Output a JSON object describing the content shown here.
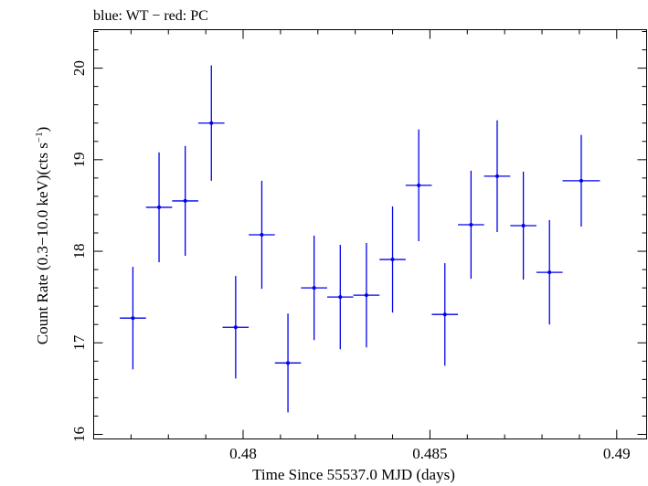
{
  "chart_data": {
    "type": "scatter",
    "title": "blue: WT − red: PC",
    "xlabel": "Time Since 55537.0 MJD (days)",
    "ylabel_main": "Count Rate (0.3−10.0 keV)(cts s",
    "ylabel_sup": "−1",
    "ylabel_close": ")",
    "xlim": [
      0.476,
      0.4908
    ],
    "ylim": [
      15.95,
      20.42
    ],
    "xticks": [
      0.48,
      0.485,
      0.49
    ],
    "xtick_labels": [
      "0.48",
      "0.485",
      "0.49"
    ],
    "yticks": [
      16,
      17,
      18,
      19,
      20
    ],
    "ytick_labels": [
      "16",
      "17",
      "18",
      "19",
      "20"
    ],
    "grid": false,
    "series": [
      {
        "name": "WT",
        "color": "#0000ee",
        "points": [
          {
            "x": 0.47705,
            "xerr": 0.00035,
            "y": 17.27,
            "yerr": 0.56
          },
          {
            "x": 0.47775,
            "xerr": 0.00035,
            "y": 18.48,
            "yerr": 0.6
          },
          {
            "x": 0.47845,
            "xerr": 0.00035,
            "y": 18.55,
            "yerr": 0.6
          },
          {
            "x": 0.47915,
            "xerr": 0.00035,
            "y": 19.4,
            "yerr": 0.63
          },
          {
            "x": 0.4798,
            "xerr": 0.00035,
            "y": 17.17,
            "yerr": 0.56
          },
          {
            "x": 0.4805,
            "xerr": 0.00035,
            "y": 18.18,
            "yerr": 0.59
          },
          {
            "x": 0.4812,
            "xerr": 0.00035,
            "y": 16.78,
            "yerr": 0.54
          },
          {
            "x": 0.4819,
            "xerr": 0.00035,
            "y": 17.6,
            "yerr": 0.57
          },
          {
            "x": 0.4826,
            "xerr": 0.00035,
            "y": 17.5,
            "yerr": 0.57
          },
          {
            "x": 0.4833,
            "xerr": 0.00035,
            "y": 17.52,
            "yerr": 0.57
          },
          {
            "x": 0.484,
            "xerr": 0.00035,
            "y": 17.91,
            "yerr": 0.58
          },
          {
            "x": 0.4847,
            "xerr": 0.00035,
            "y": 18.72,
            "yerr": 0.61
          },
          {
            "x": 0.4854,
            "xerr": 0.00035,
            "y": 17.31,
            "yerr": 0.56
          },
          {
            "x": 0.4861,
            "xerr": 0.00035,
            "y": 18.29,
            "yerr": 0.59
          },
          {
            "x": 0.4868,
            "xerr": 0.00035,
            "y": 18.82,
            "yerr": 0.61
          },
          {
            "x": 0.4875,
            "xerr": 0.00035,
            "y": 18.28,
            "yerr": 0.59
          },
          {
            "x": 0.4882,
            "xerr": 0.00035,
            "y": 17.77,
            "yerr": 0.57
          },
          {
            "x": 0.48905,
            "xerr": 0.0005,
            "y": 18.77,
            "yerr": 0.5
          }
        ]
      }
    ]
  }
}
